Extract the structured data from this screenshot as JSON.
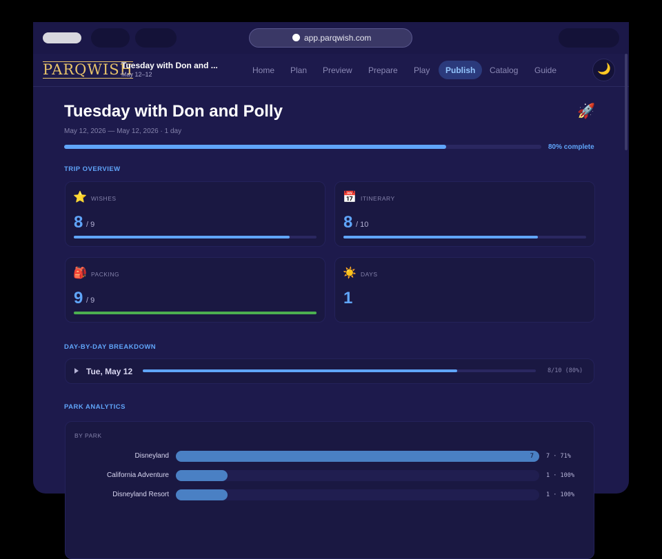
{
  "browser": {
    "url": "app.parqwish.com"
  },
  "header": {
    "logo": "PARQWISH",
    "trip_title": "Tuesday with Don and ...",
    "trip_dates": "May 12–12",
    "nav": [
      "Home",
      "Plan",
      "Preview",
      "Prepare",
      "Play",
      "Publish",
      "Catalog",
      "Guide"
    ],
    "active_nav": 5,
    "theme_icon": "🌙"
  },
  "page": {
    "title": "Tuesday with Don and Polly",
    "icon": "🚀",
    "subtitle": "May 12, 2026 — May 12, 2026 · 1 day",
    "progress": 80,
    "progress_label": "80% complete"
  },
  "overview": {
    "heading": "TRIP OVERVIEW",
    "cards": [
      {
        "icon": "⭐",
        "label": "WISHES",
        "value": 8,
        "total_label": "/ 9",
        "total": 9,
        "color": "#60a5fa"
      },
      {
        "icon": "📅",
        "label": "ITINERARY",
        "value": 8,
        "total_label": "/ 10",
        "total": 10,
        "color": "#60a5fa"
      },
      {
        "icon": "🎒",
        "label": "PACKING",
        "value": 9,
        "total_label": "/ 9",
        "total": 9,
        "color": "#4caf50"
      },
      {
        "icon": "☀️",
        "label": "DAYS",
        "value": 1
      }
    ]
  },
  "breakdown": {
    "heading": "DAY-BY-DAY BREAKDOWN",
    "days": [
      {
        "label": "Tue, May 12",
        "done": 8,
        "total": 10,
        "summary": "8/10 (80%)"
      }
    ]
  },
  "analytics": {
    "heading": "PARK ANALYTICS",
    "section": "BY PARK",
    "xlim": [
      0,
      7
    ],
    "color": "#4a80c4",
    "parks": [
      {
        "name": "Disneyland",
        "value": 7,
        "bar_label": "7",
        "label": "7 · 71%"
      },
      {
        "name": "California Adventure",
        "value": 1,
        "label": "1 · 100%"
      },
      {
        "name": "Disneyland Resort",
        "value": 1,
        "label": "1 · 100%"
      }
    ]
  }
}
